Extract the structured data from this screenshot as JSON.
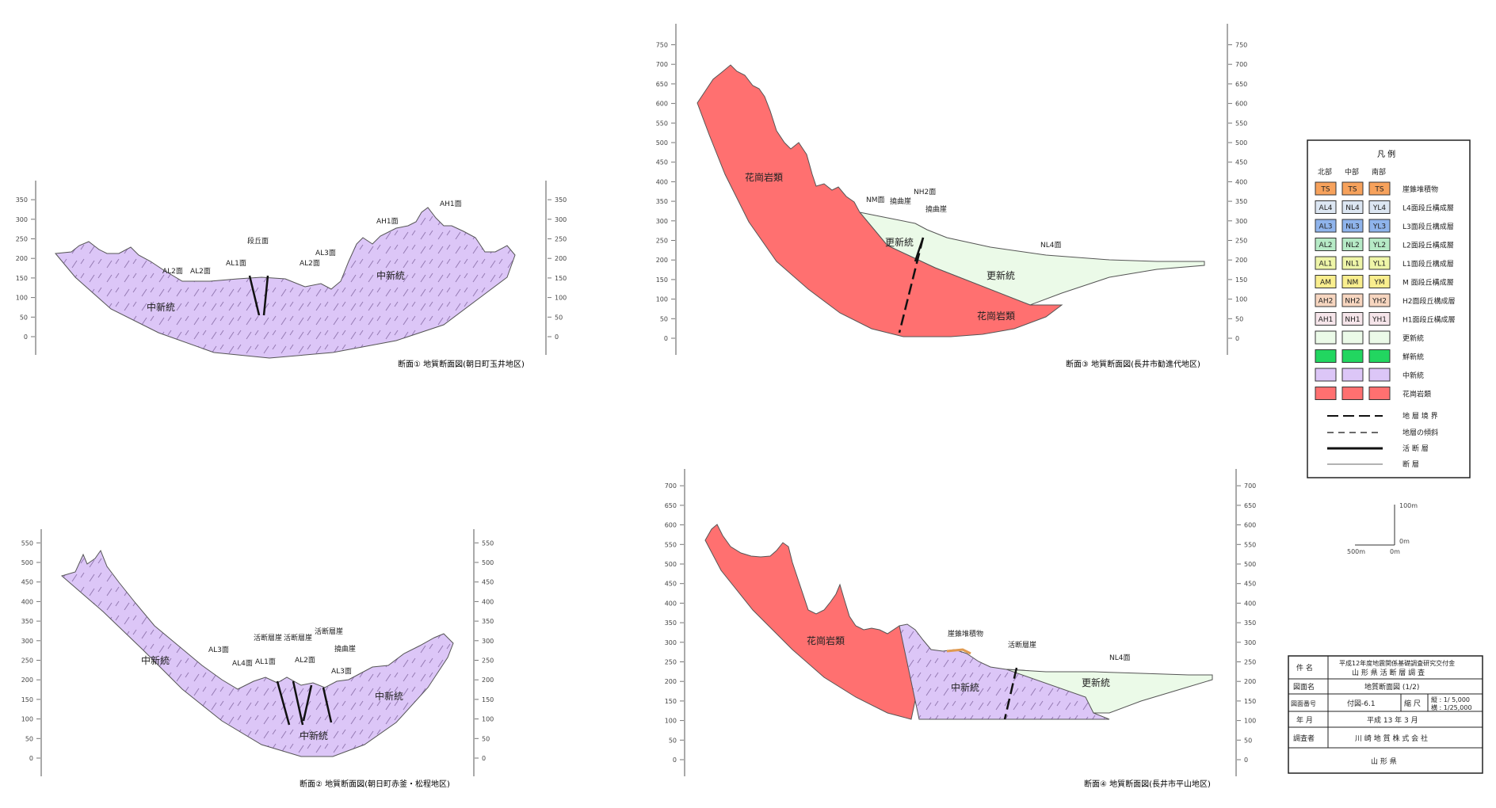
{
  "colors": {
    "nakashin": "#dcc6f7",
    "kashin": "#ebfae8",
    "granite": "#ff7070",
    "hosei": "#22d660",
    "ts": "#f7a25c",
    "l4": "#dce6f2",
    "l3": "#8fb4ec",
    "l2": "#b6eac6",
    "l1": "#eef5a8",
    "m": "#f9ee8e",
    "h2": "#f7d6c0",
    "h1": "#f6e5ea"
  },
  "sections": {
    "s1": {
      "caption": "断面① 地質断面図(朝日町玉井地区)",
      "ticks": [
        "0",
        "50",
        "100",
        "150",
        "200",
        "250",
        "300",
        "350"
      ],
      "units": [
        "中新統",
        "中新統"
      ],
      "labels": [
        "AL2面",
        "AL2面",
        "AL1面",
        "段丘面",
        "AL2面",
        "AL3面",
        "AH1面",
        "AH1面"
      ]
    },
    "s2": {
      "caption": "断面② 地質断面図(朝日町赤釜・松程地区)",
      "ticks": [
        "0",
        "50",
        "100",
        "150",
        "200",
        "250",
        "300",
        "350",
        "400",
        "450",
        "500",
        "550"
      ],
      "units": [
        "中新統",
        "中新統",
        "中新統"
      ],
      "labels": [
        "AL3面",
        "AL4面",
        "AL1面",
        "活断層崖",
        "活断層崖",
        "AL2面",
        "活断層崖",
        "撓曲崖",
        "AL3面"
      ]
    },
    "s3": {
      "caption": "断面③ 地質断面図(長井市勧進代地区)",
      "ticks": [
        "0",
        "50",
        "100",
        "150",
        "200",
        "250",
        "300",
        "350",
        "400",
        "450",
        "500",
        "550",
        "600",
        "650",
        "700",
        "750"
      ],
      "units": [
        "花崗岩類",
        "更新統",
        "更新統",
        "花崗岩類"
      ],
      "labels": [
        "NM面",
        "撓曲崖",
        "NH2面",
        "撓曲崖",
        "NL4面"
      ]
    },
    "s4": {
      "caption": "断面④ 地質断面図(長井市平山地区)",
      "ticks": [
        "0",
        "50",
        "100",
        "150",
        "200",
        "250",
        "300",
        "350",
        "400",
        "450",
        "500",
        "550",
        "600",
        "650",
        "700"
      ],
      "units": [
        "花崗岩類",
        "中新統",
        "更新統"
      ],
      "labels": [
        "崖錐堆積物",
        "活断層崖",
        "NL4面"
      ]
    }
  },
  "legend": {
    "title": "凡 例",
    "columns": [
      "北部",
      "中部",
      "南部"
    ],
    "rows": [
      {
        "codes": [
          "TS",
          "TS",
          "TS"
        ],
        "label": "崖錐堆積物",
        "color": "ts"
      },
      {
        "codes": [
          "AL4",
          "NL4",
          "YL4"
        ],
        "label": "L4面段丘構成層",
        "color": "l4"
      },
      {
        "codes": [
          "AL3",
          "NL3",
          "YL3"
        ],
        "label": "L3面段丘構成層",
        "color": "l3"
      },
      {
        "codes": [
          "AL2",
          "NL2",
          "YL2"
        ],
        "label": "L2面段丘構成層",
        "color": "l2"
      },
      {
        "codes": [
          "AL1",
          "NL1",
          "YL1"
        ],
        "label": "L1面段丘構成層",
        "color": "l1"
      },
      {
        "codes": [
          "AM",
          "NM",
          "YM"
        ],
        "label": "M 面段丘構成層",
        "color": "m"
      },
      {
        "codes": [
          "AH2",
          "NH2",
          "YH2"
        ],
        "label": "H2面段丘構成層",
        "color": "h2"
      },
      {
        "codes": [
          "AH1",
          "NH1",
          "YH1"
        ],
        "label": "H1面段丘構成層",
        "color": "h1"
      },
      {
        "codes": [
          "",
          "",
          ""
        ],
        "label": "更新統",
        "color": "kashin"
      },
      {
        "codes": [
          "",
          "",
          ""
        ],
        "label": "鮮新統",
        "color": "hosei"
      },
      {
        "codes": [
          "",
          "",
          ""
        ],
        "label": "中新統",
        "color": "nakashin"
      },
      {
        "codes": [
          "",
          "",
          ""
        ],
        "label": "花崗岩類",
        "color": "granite"
      }
    ],
    "lines": [
      "地 層 境 界",
      "地層の傾斜",
      "活 断 層",
      "断 層"
    ]
  },
  "scale": {
    "v": "100m",
    "v0": "0m",
    "h": "500m",
    "h0": "0m"
  },
  "title_block": {
    "k1": "件 名",
    "v1a": "平成12年度地震関係基礎調査研究交付金",
    "v1b": "山 形 県 活 断 層 調 査",
    "k2": "図面名",
    "v2": "地質断面図 (1/2)",
    "k3": "図面番号",
    "v3": "付図-6.1",
    "k3b": "縮 尺",
    "v3b1": "縦 : 1/ 5,000",
    "v3b2": "横 : 1/25,000",
    "k4": "年 月",
    "v4": "平成 13 年 3 月",
    "k5": "調査者",
    "v5": "川 崎 地 質 株 式 会 社",
    "v6": "山 形 県"
  }
}
